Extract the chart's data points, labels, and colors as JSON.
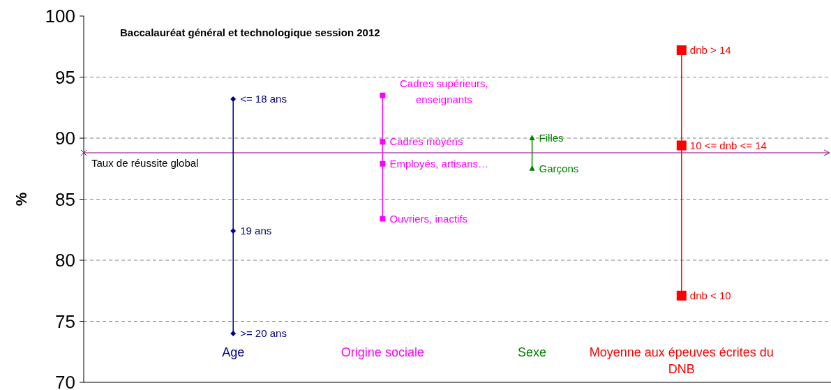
{
  "chart_data": {
    "type": "line",
    "title": "Baccalauréat général et technologique session 2012",
    "ylabel": "%",
    "categories": [
      "Age",
      "Origine sociale",
      "Sexe",
      "Moyenne aux épeuves écrites du DNB"
    ],
    "series": [
      {
        "color": "#000080",
        "marker": "diamond",
        "x": [
          "Age",
          "Age",
          "Age"
        ],
        "values": [
          93.2,
          82.4,
          74.0
        ]
      },
      {
        "color": "#ff00ff",
        "marker": "square",
        "x": [
          "Origine sociale",
          "Origine sociale",
          "Origine sociale",
          "Origine sociale"
        ],
        "values": [
          93.5,
          89.7,
          87.9,
          83.4
        ]
      },
      {
        "color": "#008000",
        "marker": "triangle",
        "x": [
          "Sexe",
          "Sexe"
        ],
        "values": [
          90.0,
          87.5
        ]
      },
      {
        "color": "#ff0000",
        "marker": "square",
        "x": [
          "Moyenne aux épeuves écrites du DNB",
          "Moyenne aux épeuves écrites du DNB",
          "Moyenne aux épeuves écrites du DNB"
        ],
        "values": [
          97.2,
          89.4,
          77.1
        ]
      }
    ],
    "annotations": [
      {
        "text": "<= 18 ans",
        "x": "Age",
        "y": 93.2
      },
      {
        "text": "19 ans",
        "x": "Age",
        "y": 82.4
      },
      {
        "text": ">= 20 ans",
        "x": "Age",
        "y": 74.0
      },
      {
        "text": "Cadres supérieurs, enseignants",
        "x": "Origine sociale",
        "y": 93.5
      },
      {
        "text": "Cadres moyens",
        "x": "Origine sociale",
        "y": 89.7
      },
      {
        "text": "Employés, artisans…",
        "x": "Origine sociale",
        "y": 87.9
      },
      {
        "text": "Ouvriers, inactifs",
        "x": "Origine sociale",
        "y": 83.4
      },
      {
        "text": "Filles",
        "x": "Sexe",
        "y": 90.0
      },
      {
        "text": "Garçons",
        "x": "Sexe",
        "y": 87.5
      },
      {
        "text": "dnb > 14",
        "x": "Moyenne aux épeuves écrites du DNB",
        "y": 97.2
      },
      {
        "text": "10 <= dnb <= 14",
        "x": "Moyenne aux épeuves écrites du DNB",
        "y": 89.4
      },
      {
        "text": "dnb < 10",
        "x": "Moyenne aux épeuves écrites du DNB",
        "y": 77.1
      }
    ],
    "ref_lines": [
      {
        "axis": "y",
        "value": 88.8,
        "label": "Taux de réussite global",
        "color": "#800080"
      }
    ],
    "ylim": [
      70,
      100
    ],
    "yticks": [
      70,
      75,
      80,
      85,
      90,
      95,
      100
    ],
    "grid": "y"
  }
}
